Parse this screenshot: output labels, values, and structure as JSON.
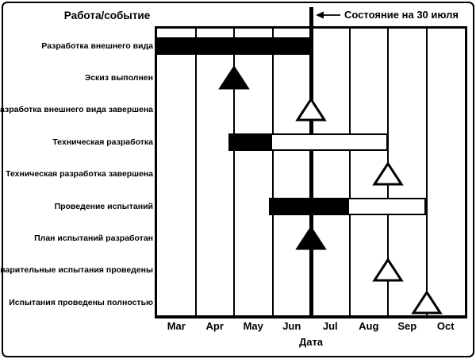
{
  "figure": {
    "header_col_title": "Работа/событие",
    "status_label": "Состояние на 30 июля",
    "x_axis_label": "Дата"
  },
  "colors": {
    "ink": "#000000",
    "paper": "#ffffff"
  },
  "chart_data": {
    "type": "gantt",
    "title": "",
    "xlabel": "Дата",
    "x": {
      "tick_labels": [
        "Mar",
        "Apr",
        "May",
        "Jun",
        "Jul",
        "Aug",
        "Sep",
        "Oct"
      ],
      "unit": "months_from_March_start",
      "range": [
        0,
        8
      ],
      "grid": "vertical lines at every month boundary"
    },
    "status_line": {
      "label": "Состояние на 30 июля",
      "position": 4
    },
    "rows": [
      {
        "label": "Разработка внешнего вида",
        "kind": "bar",
        "start": 0,
        "end": 4,
        "filled_to": 4
      },
      {
        "label": "Эскиз выполнен",
        "kind": "milestone",
        "at": 2,
        "filled": true
      },
      {
        "label": "Разработка внешнего вида завершена",
        "kind": "milestone",
        "at": 4,
        "filled": false
      },
      {
        "label": "Техническая разработка",
        "kind": "bar",
        "start": 1.85,
        "end": 6,
        "filled_to": 3
      },
      {
        "label": "Техническая разработка завершена",
        "kind": "milestone",
        "at": 6,
        "filled": false
      },
      {
        "label": "Проведение испытаний",
        "kind": "bar",
        "start": 2.9,
        "end": 7,
        "filled_to": 5
      },
      {
        "label": "План испытаний разработан",
        "kind": "milestone",
        "at": 4,
        "filled": true
      },
      {
        "label": "Предварительные испытания проведены",
        "kind": "milestone",
        "at": 6,
        "filled": false
      },
      {
        "label": "Испытания проведены полностью",
        "kind": "milestone",
        "at": 7,
        "filled": false
      }
    ]
  }
}
